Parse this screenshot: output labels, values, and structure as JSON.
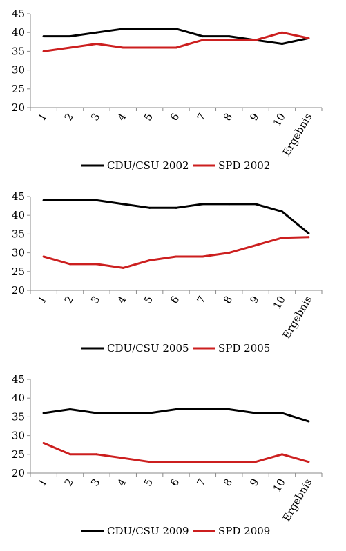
{
  "chart_data": [
    {
      "type": "line",
      "categories": [
        "1",
        "2",
        "3",
        "4",
        "5",
        "6",
        "7",
        "8",
        "9",
        "10",
        "Ergebnis"
      ],
      "ylim": [
        20,
        45
      ],
      "yticks": [
        20,
        25,
        30,
        35,
        40,
        45
      ],
      "grid": false,
      "legend_position": "bottom",
      "series": [
        {
          "name": "CDU/CSU 2002",
          "color": "#000000",
          "values": [
            39,
            39,
            40,
            41,
            41,
            41,
            39,
            39,
            38,
            37,
            38.5
          ]
        },
        {
          "name": "SPD 2002",
          "color": "#cc1f1f",
          "values": [
            35,
            36,
            37,
            36,
            36,
            36,
            38,
            38,
            38,
            40,
            38.5
          ]
        }
      ]
    },
    {
      "type": "line",
      "categories": [
        "1",
        "2",
        "3",
        "4",
        "5",
        "6",
        "7",
        "8",
        "9",
        "10",
        "Ergebnis"
      ],
      "ylim": [
        20,
        45
      ],
      "yticks": [
        20,
        25,
        30,
        35,
        40,
        45
      ],
      "grid": false,
      "legend_position": "bottom",
      "series": [
        {
          "name": "CDU/CSU 2005",
          "color": "#000000",
          "values": [
            44,
            44,
            44,
            43,
            42,
            42,
            43,
            43,
            43,
            41,
            35.2
          ]
        },
        {
          "name": "SPD 2005",
          "color": "#cc1f1f",
          "values": [
            29,
            27,
            27,
            26,
            28,
            29,
            29,
            30,
            32,
            34,
            34.2
          ]
        }
      ]
    },
    {
      "type": "line",
      "categories": [
        "1",
        "2",
        "3",
        "4",
        "5",
        "6",
        "7",
        "8",
        "9",
        "10",
        "Ergebnis"
      ],
      "ylim": [
        20,
        45
      ],
      "yticks": [
        20,
        25,
        30,
        35,
        40,
        45
      ],
      "grid": false,
      "legend_position": "bottom",
      "series": [
        {
          "name": "CDU/CSU 2009",
          "color": "#000000",
          "values": [
            36,
            37,
            36,
            36,
            36,
            37,
            37,
            37,
            36,
            36,
            33.8
          ]
        },
        {
          "name": "SPD 2009",
          "color": "#cc1f1f",
          "values": [
            28,
            25,
            25,
            24,
            23,
            23,
            23,
            23,
            23,
            25,
            23
          ]
        }
      ]
    }
  ]
}
